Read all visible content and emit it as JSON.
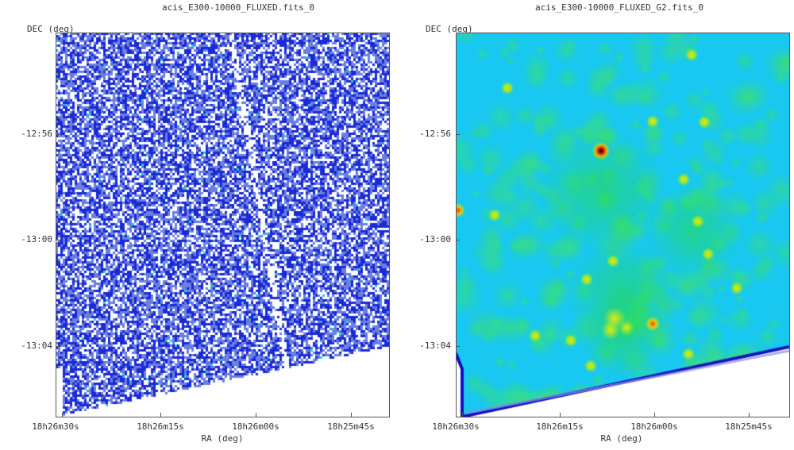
{
  "chart_data": [
    {
      "type": "heatmap",
      "title": "acis_E300-10000_FLUXED.fits_0",
      "xlabel": "RA (deg)",
      "ylabel": "DEC (deg)",
      "xticks": [
        "18h26m30s",
        "18h26m15s",
        "18h26m00s",
        "18h25m45s"
      ],
      "yticks": [
        "-12:56",
        "-13:00",
        "-13:04"
      ],
      "colormap": "blue-white noise map with sparse cyan/green hot pixels",
      "colors": {
        "low": "#ffffff",
        "mid": "#6a7fe0",
        "high": "#1a2ad6",
        "hot": "#22d0d0"
      }
    },
    {
      "type": "heatmap",
      "title": "acis_E300-10000_FLUXED_G2.fits_0",
      "xlabel": "RA (deg)",
      "ylabel": "DEC (deg)",
      "xticks": [
        "18h26m30s",
        "18h26m15s",
        "18h26m00s",
        "18h25m45s"
      ],
      "yticks": [
        "-12:56",
        "-13:00",
        "-13:04"
      ],
      "colormap": "smoothed cyan-green-yellow-red map with point sources",
      "colors": {
        "edge": "#1010c0",
        "low": "#18c8f0",
        "mid": "#30e060",
        "high": "#f0f000",
        "peak": "#c01010"
      }
    }
  ]
}
